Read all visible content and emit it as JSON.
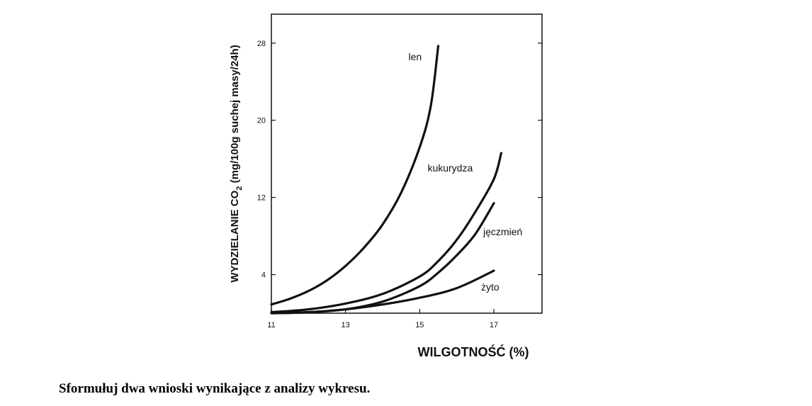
{
  "chart_data": {
    "type": "line",
    "xlabel": "WILGOTNOŚĆ (%)",
    "ylabel": {
      "pre": "WYDZIELANIE CO",
      "sub": "2",
      "post": " (mg/100g suchej masy/24h)"
    },
    "xlim": [
      11,
      18.3
    ],
    "ylim": [
      0,
      31
    ],
    "xticks": [
      "11",
      "13",
      "15",
      "17"
    ],
    "yticks": [
      "4",
      "12",
      "20",
      "28"
    ],
    "grid": false,
    "series": [
      {
        "name": "len",
        "points": [
          [
            11,
            0.9
          ],
          [
            11.5,
            1.5
          ],
          [
            12,
            2.3
          ],
          [
            12.5,
            3.4
          ],
          [
            13,
            4.9
          ],
          [
            13.5,
            6.8
          ],
          [
            14,
            9.2
          ],
          [
            14.5,
            12.5
          ],
          [
            15,
            17.2
          ],
          [
            15.3,
            21.5
          ],
          [
            15.5,
            27.7
          ]
        ]
      },
      {
        "name": "kukurydza",
        "points": [
          [
            11,
            0.1
          ],
          [
            12,
            0.4
          ],
          [
            13,
            1.0
          ],
          [
            14,
            2.0
          ],
          [
            15,
            3.8
          ],
          [
            15.5,
            5.4
          ],
          [
            16,
            7.6
          ],
          [
            16.5,
            10.5
          ],
          [
            17,
            13.9
          ],
          [
            17.2,
            16.6
          ]
        ]
      },
      {
        "name": "jęczmień",
        "points": [
          [
            11,
            0.0
          ],
          [
            12,
            0.1
          ],
          [
            13,
            0.4
          ],
          [
            14,
            1.2
          ],
          [
            15,
            2.8
          ],
          [
            15.5,
            4.2
          ],
          [
            16,
            6.0
          ],
          [
            16.5,
            8.2
          ],
          [
            17,
            11.4
          ]
        ]
      },
      {
        "name": "żyto",
        "points": [
          [
            11,
            0.0
          ],
          [
            12,
            0.1
          ],
          [
            13,
            0.4
          ],
          [
            14,
            0.9
          ],
          [
            15,
            1.6
          ],
          [
            16,
            2.6
          ],
          [
            17,
            4.4
          ]
        ]
      }
    ]
  },
  "question": "Sformułuj dwa wnioski wynikające z analizy wykresu."
}
